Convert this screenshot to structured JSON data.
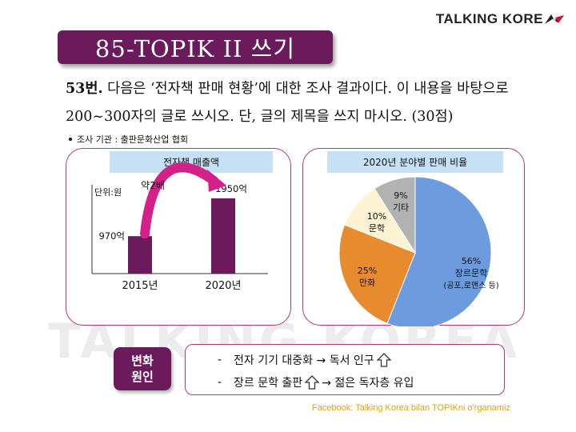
{
  "logo": {
    "text": "TALKING KORE"
  },
  "watermark": {
    "text": "TALKING KOREA"
  },
  "title": "85-TOPIK II 쓰기",
  "question": {
    "number": "53번.",
    "line1": " 다음은 ‘전자책 판매 현황’에 대한 조사 결과이다. 이 내용을 바탕으로",
    "line2": "200~300자의 글로 쓰시오. 단, 글의 제목을 쓰지 마시오. (30점)"
  },
  "source": "조사 기관 : 출판문화산업 협회",
  "chart_data": [
    {
      "type": "bar",
      "title": "전자책 매출액",
      "unit_label": "단위:원",
      "categories": [
        "2015년",
        "2020년"
      ],
      "values": [
        970,
        1950
      ],
      "value_labels": [
        "970억",
        "1950억"
      ],
      "annotation": "약2배",
      "ylim": [
        0,
        2300
      ],
      "color": "#6b1a5c",
      "arrow_color": "#d4218a"
    },
    {
      "type": "pie",
      "title": "2020년 분야별 판매 비율",
      "slices": [
        {
          "value": 56,
          "pct": "56%",
          "lines": [
            "장르문학",
            "(공포,로맨스 등)"
          ],
          "color": "#6c9be0"
        },
        {
          "value": 25,
          "pct": "25%",
          "lines": [
            "만화"
          ],
          "color": "#e88a2e"
        },
        {
          "value": 10,
          "pct": "10%",
          "lines": [
            "문학"
          ],
          "color": "#fdf3d3"
        },
        {
          "value": 9,
          "pct": "9%",
          "lines": [
            "기타"
          ],
          "color": "#b2b2b2"
        }
      ]
    }
  ],
  "causes": {
    "badge_line1": "변화",
    "badge_line2": "원인",
    "item1": "전자 기기 대중화  →  독서 인구",
    "item2_a": "장르 문학 출판",
    "item2_b": "→  젊은 독자층 유입",
    "dash": "-"
  },
  "footer": "Facebook: Talking Korea bilan TOPIKni o'rganamiz"
}
